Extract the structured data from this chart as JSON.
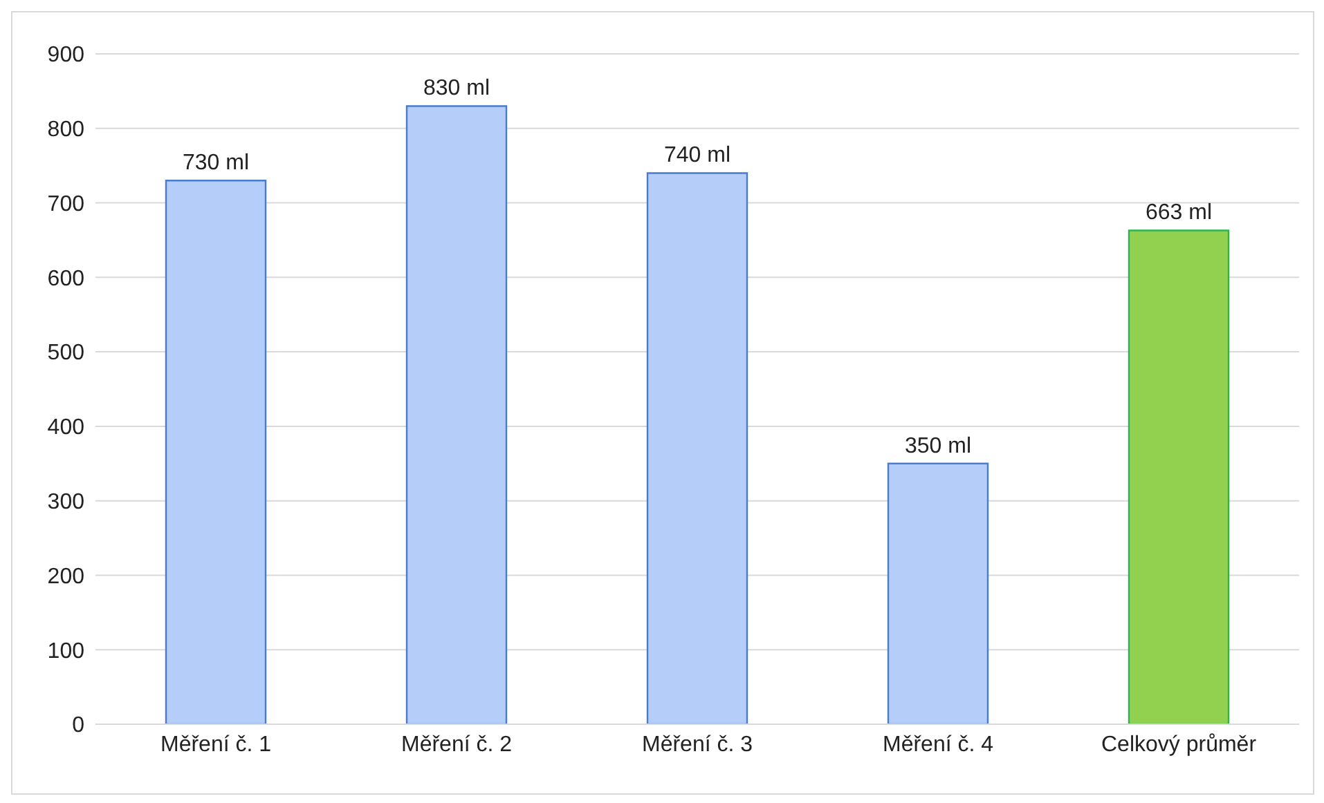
{
  "chart_data": {
    "type": "bar",
    "categories": [
      "Měření č. 1",
      "Měření č. 2",
      "Měření č. 3",
      "Měření č. 4",
      "Celkový průměr"
    ],
    "values": [
      730,
      830,
      740,
      350,
      663
    ],
    "colors": [
      "#b4cdf9",
      "#b4cdf9",
      "#b4cdf9",
      "#b4cdf9",
      "#92d050"
    ],
    "value_labels": [
      "730 ml",
      "830 ml",
      "740 ml",
      "350 ml",
      "663 ml"
    ],
    "ylim": [
      0,
      900
    ],
    "yticks": [
      0,
      100,
      200,
      300,
      400,
      500,
      600,
      700,
      800,
      900
    ],
    "grid": "y"
  }
}
